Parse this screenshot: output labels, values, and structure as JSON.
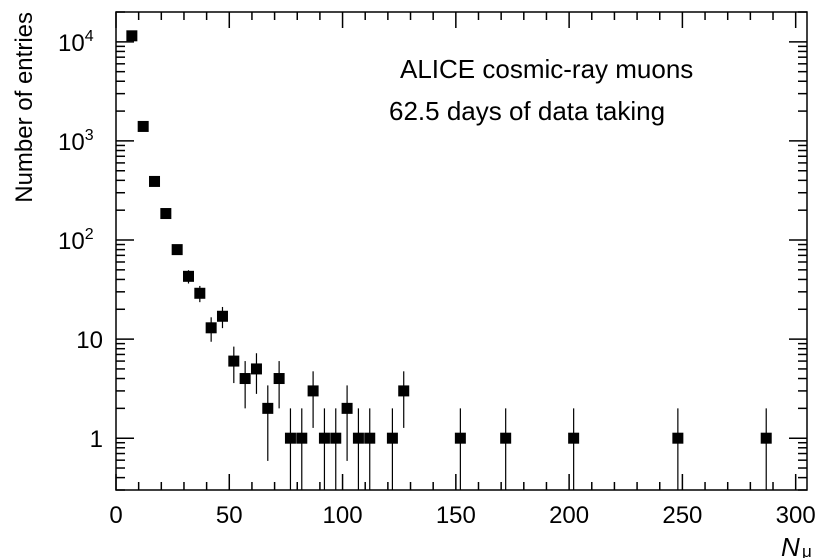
{
  "chart_data": {
    "type": "scatter",
    "subtype": "histogram points with error bars",
    "title": "",
    "xlabel": "N",
    "xlabel_subscript": "μ",
    "ylabel": "Number of entries",
    "xlim": [
      0,
      305
    ],
    "ylim": [
      0.3,
      20000
    ],
    "y_scale": "log",
    "grid": false,
    "legend": "none",
    "marker": "filled-square",
    "marker_color": "#000000",
    "annotations": [
      "ALICE cosmic-ray muons",
      "62.5 days of data taking"
    ],
    "x_ticks": [
      "0",
      "50",
      "100",
      "150",
      "200",
      "250",
      "300"
    ],
    "y_ticks": [
      "1",
      "10",
      "10^2",
      "10^3",
      "10^4"
    ],
    "points": [
      {
        "x": 7,
        "y": 11500,
        "lo": 11393,
        "hi": 11607
      },
      {
        "x": 12,
        "y": 1400,
        "lo": 1363,
        "hi": 1437
      },
      {
        "x": 17,
        "y": 390,
        "lo": 370,
        "hi": 410
      },
      {
        "x": 22,
        "y": 185,
        "lo": 171,
        "hi": 199
      },
      {
        "x": 27,
        "y": 80,
        "lo": 71,
        "hi": 89
      },
      {
        "x": 32,
        "y": 43,
        "lo": 36.4,
        "hi": 49.6
      },
      {
        "x": 37,
        "y": 29,
        "lo": 23.6,
        "hi": 34.4
      },
      {
        "x": 42,
        "y": 13,
        "lo": 9.4,
        "hi": 16.6
      },
      {
        "x": 47,
        "y": 17,
        "lo": 12.9,
        "hi": 21.1
      },
      {
        "x": 52,
        "y": 6,
        "lo": 3.6,
        "hi": 8.4
      },
      {
        "x": 57,
        "y": 4,
        "lo": 2.0,
        "hi": 6.0
      },
      {
        "x": 62,
        "y": 5,
        "lo": 2.8,
        "hi": 7.2
      },
      {
        "x": 67,
        "y": 2,
        "lo": 0.59,
        "hi": 3.41
      },
      {
        "x": 72,
        "y": 4,
        "lo": 2.0,
        "hi": 6.0
      },
      {
        "x": 77,
        "y": 1,
        "lo": 0.3,
        "hi": 2.0
      },
      {
        "x": 82,
        "y": 1,
        "lo": 0.3,
        "hi": 2.0
      },
      {
        "x": 87,
        "y": 3,
        "lo": 1.27,
        "hi": 4.73
      },
      {
        "x": 92,
        "y": 1,
        "lo": 0.3,
        "hi": 2.0
      },
      {
        "x": 97,
        "y": 1,
        "lo": 0.3,
        "hi": 2.0
      },
      {
        "x": 102,
        "y": 2,
        "lo": 0.59,
        "hi": 3.41
      },
      {
        "x": 107,
        "y": 1,
        "lo": 0.3,
        "hi": 2.0
      },
      {
        "x": 112,
        "y": 1,
        "lo": 0.3,
        "hi": 2.0
      },
      {
        "x": 122,
        "y": 1,
        "lo": 0.3,
        "hi": 2.0
      },
      {
        "x": 127,
        "y": 3,
        "lo": 1.27,
        "hi": 4.73
      },
      {
        "x": 152,
        "y": 1,
        "lo": 0.3,
        "hi": 2.0
      },
      {
        "x": 172,
        "y": 1,
        "lo": 0.3,
        "hi": 2.0
      },
      {
        "x": 202,
        "y": 1,
        "lo": 0.3,
        "hi": 2.0
      },
      {
        "x": 248,
        "y": 1,
        "lo": 0.3,
        "hi": 2.0
      },
      {
        "x": 287,
        "y": 1,
        "lo": 0.3,
        "hi": 2.0
      }
    ]
  }
}
